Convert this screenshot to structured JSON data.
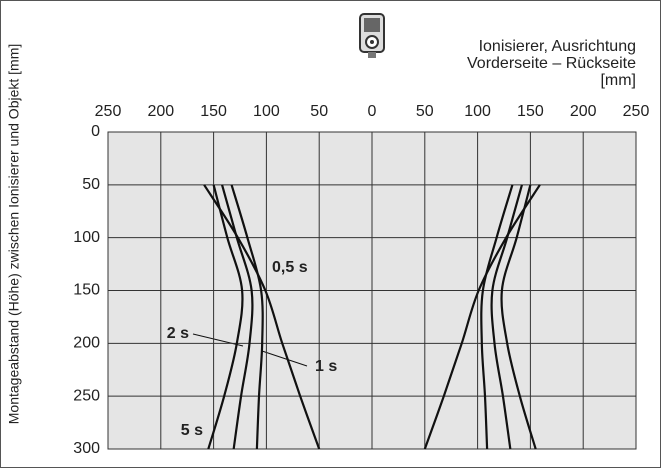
{
  "chart_data": {
    "type": "line",
    "title_lines": [
      "Ionisierer, Ausrichtung",
      "Vorderseite – Rückseite",
      "[mm]"
    ],
    "y_label": "Montageabstand (Höhe) zwischen Ionisierer und Objekt [mm]",
    "xlim": [
      -250,
      250
    ],
    "xticks": [
      {
        "value": -250,
        "label": "250"
      },
      {
        "value": -200,
        "label": "200"
      },
      {
        "value": -150,
        "label": "150"
      },
      {
        "value": -100,
        "label": "100"
      },
      {
        "value": -50,
        "label": "50"
      },
      0,
      50,
      100,
      150,
      200,
      250
    ],
    "ylim": [
      0,
      300
    ],
    "y_inverted": true,
    "yticks": [
      0,
      50,
      100,
      150,
      200,
      250,
      300
    ],
    "grid": true,
    "series": [
      {
        "name": "0,5 s",
        "color": "#111111",
        "x": [
          -159,
          -127,
          -101,
          -85,
          -68,
          -50,
          null,
          159,
          127,
          101,
          85,
          68,
          50
        ],
        "values": [
          50,
          100,
          150,
          200,
          250,
          300,
          null,
          50,
          100,
          150,
          200,
          250,
          300
        ]
      },
      {
        "name": "1 s",
        "color": "#111111",
        "x": [
          -133,
          -118,
          -105,
          -104,
          -107,
          -109,
          null,
          133,
          118,
          105,
          104,
          107,
          109
        ],
        "values": [
          50,
          100,
          150,
          200,
          250,
          300,
          null,
          50,
          100,
          150,
          200,
          250,
          300
        ]
      },
      {
        "name": "2 s",
        "color": "#111111",
        "x": [
          -142,
          -128,
          -114,
          -116,
          -124,
          -131,
          null,
          142,
          128,
          114,
          116,
          124,
          131
        ],
        "values": [
          50,
          100,
          150,
          200,
          250,
          300,
          null,
          50,
          100,
          150,
          200,
          250,
          300
        ]
      },
      {
        "name": "5 s",
        "color": "#111111",
        "x": [
          -150,
          -137,
          -123,
          -128,
          -140,
          -155,
          null,
          150,
          137,
          123,
          128,
          140,
          155
        ],
        "values": [
          50,
          100,
          150,
          200,
          250,
          300,
          null,
          50,
          100,
          150,
          200,
          250,
          300
        ]
      }
    ]
  }
}
